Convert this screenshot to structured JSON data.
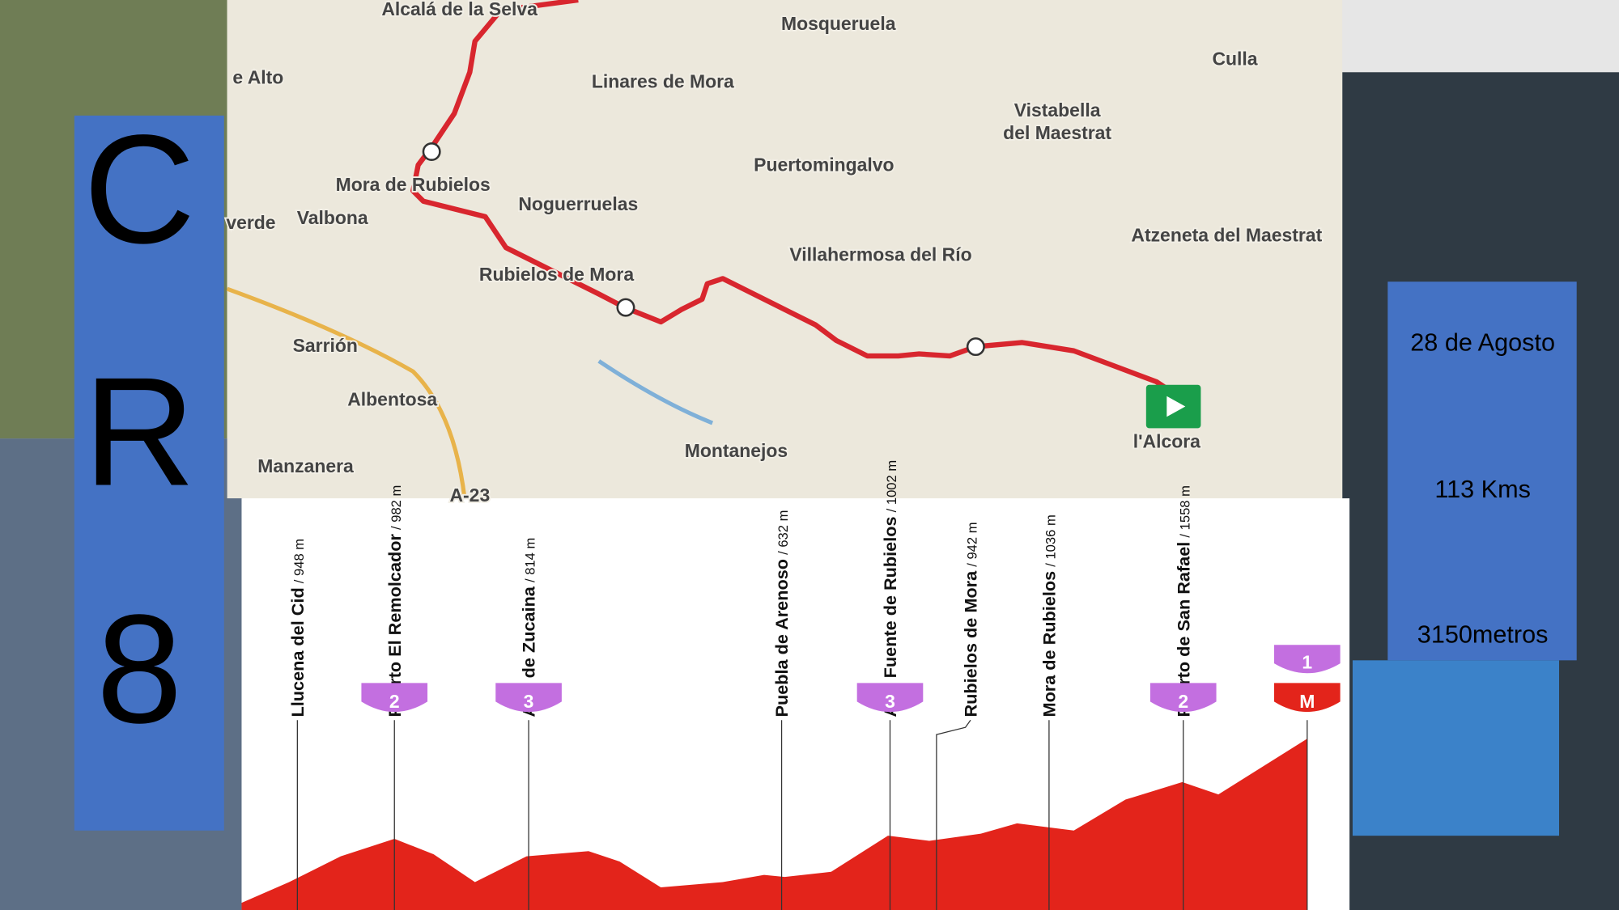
{
  "left_panel": {
    "letters": [
      "C",
      "R",
      "8"
    ]
  },
  "info_panel": {
    "lines": [
      "28 de Agosto",
      "113 Kms",
      "3150metros"
    ]
  },
  "map": {
    "labels": [
      "Alcalá de la Selva",
      "Mosqueruela",
      "Culla",
      "e Alto",
      "Linares de Mora",
      "Vistabella",
      "del Maestrat",
      "Puertomingalvo",
      "Mora de Rubielos",
      "Noguerruelas",
      "verde",
      "Valbona",
      "Atzeneta del Maestrat",
      "Villahermosa del Río",
      "Rubielos de Mora",
      "Sarrión",
      "Albentosa",
      "Montanejos",
      "l'Alcora",
      "Manzanera",
      "A-23"
    ]
  },
  "profile": {
    "climbs": [
      {
        "name": "Llucena del Cid",
        "elevation": "/ 948 m"
      },
      {
        "name": "Puerto El Remolcador",
        "elevation": "/ 982 m",
        "category": "2"
      },
      {
        "name": "Alto de Zucaina",
        "elevation": "/ 814 m",
        "category": "3"
      },
      {
        "name": "Puebla de Arenoso",
        "elevation": "/ 632 m"
      },
      {
        "name": "Alto Fuente de Rubielos",
        "elevation": "/ 1002 m",
        "category": "3"
      },
      {
        "name": "Rubielos de Mora",
        "elevation": "/ 942 m"
      },
      {
        "name": "Mora de Rubielos",
        "elevation": "/ 1036 m"
      },
      {
        "name": "Puerto de San Rafael",
        "elevation": "/ 1558 m",
        "category": "2"
      }
    ],
    "finish_badges": [
      "1",
      "M"
    ]
  }
}
